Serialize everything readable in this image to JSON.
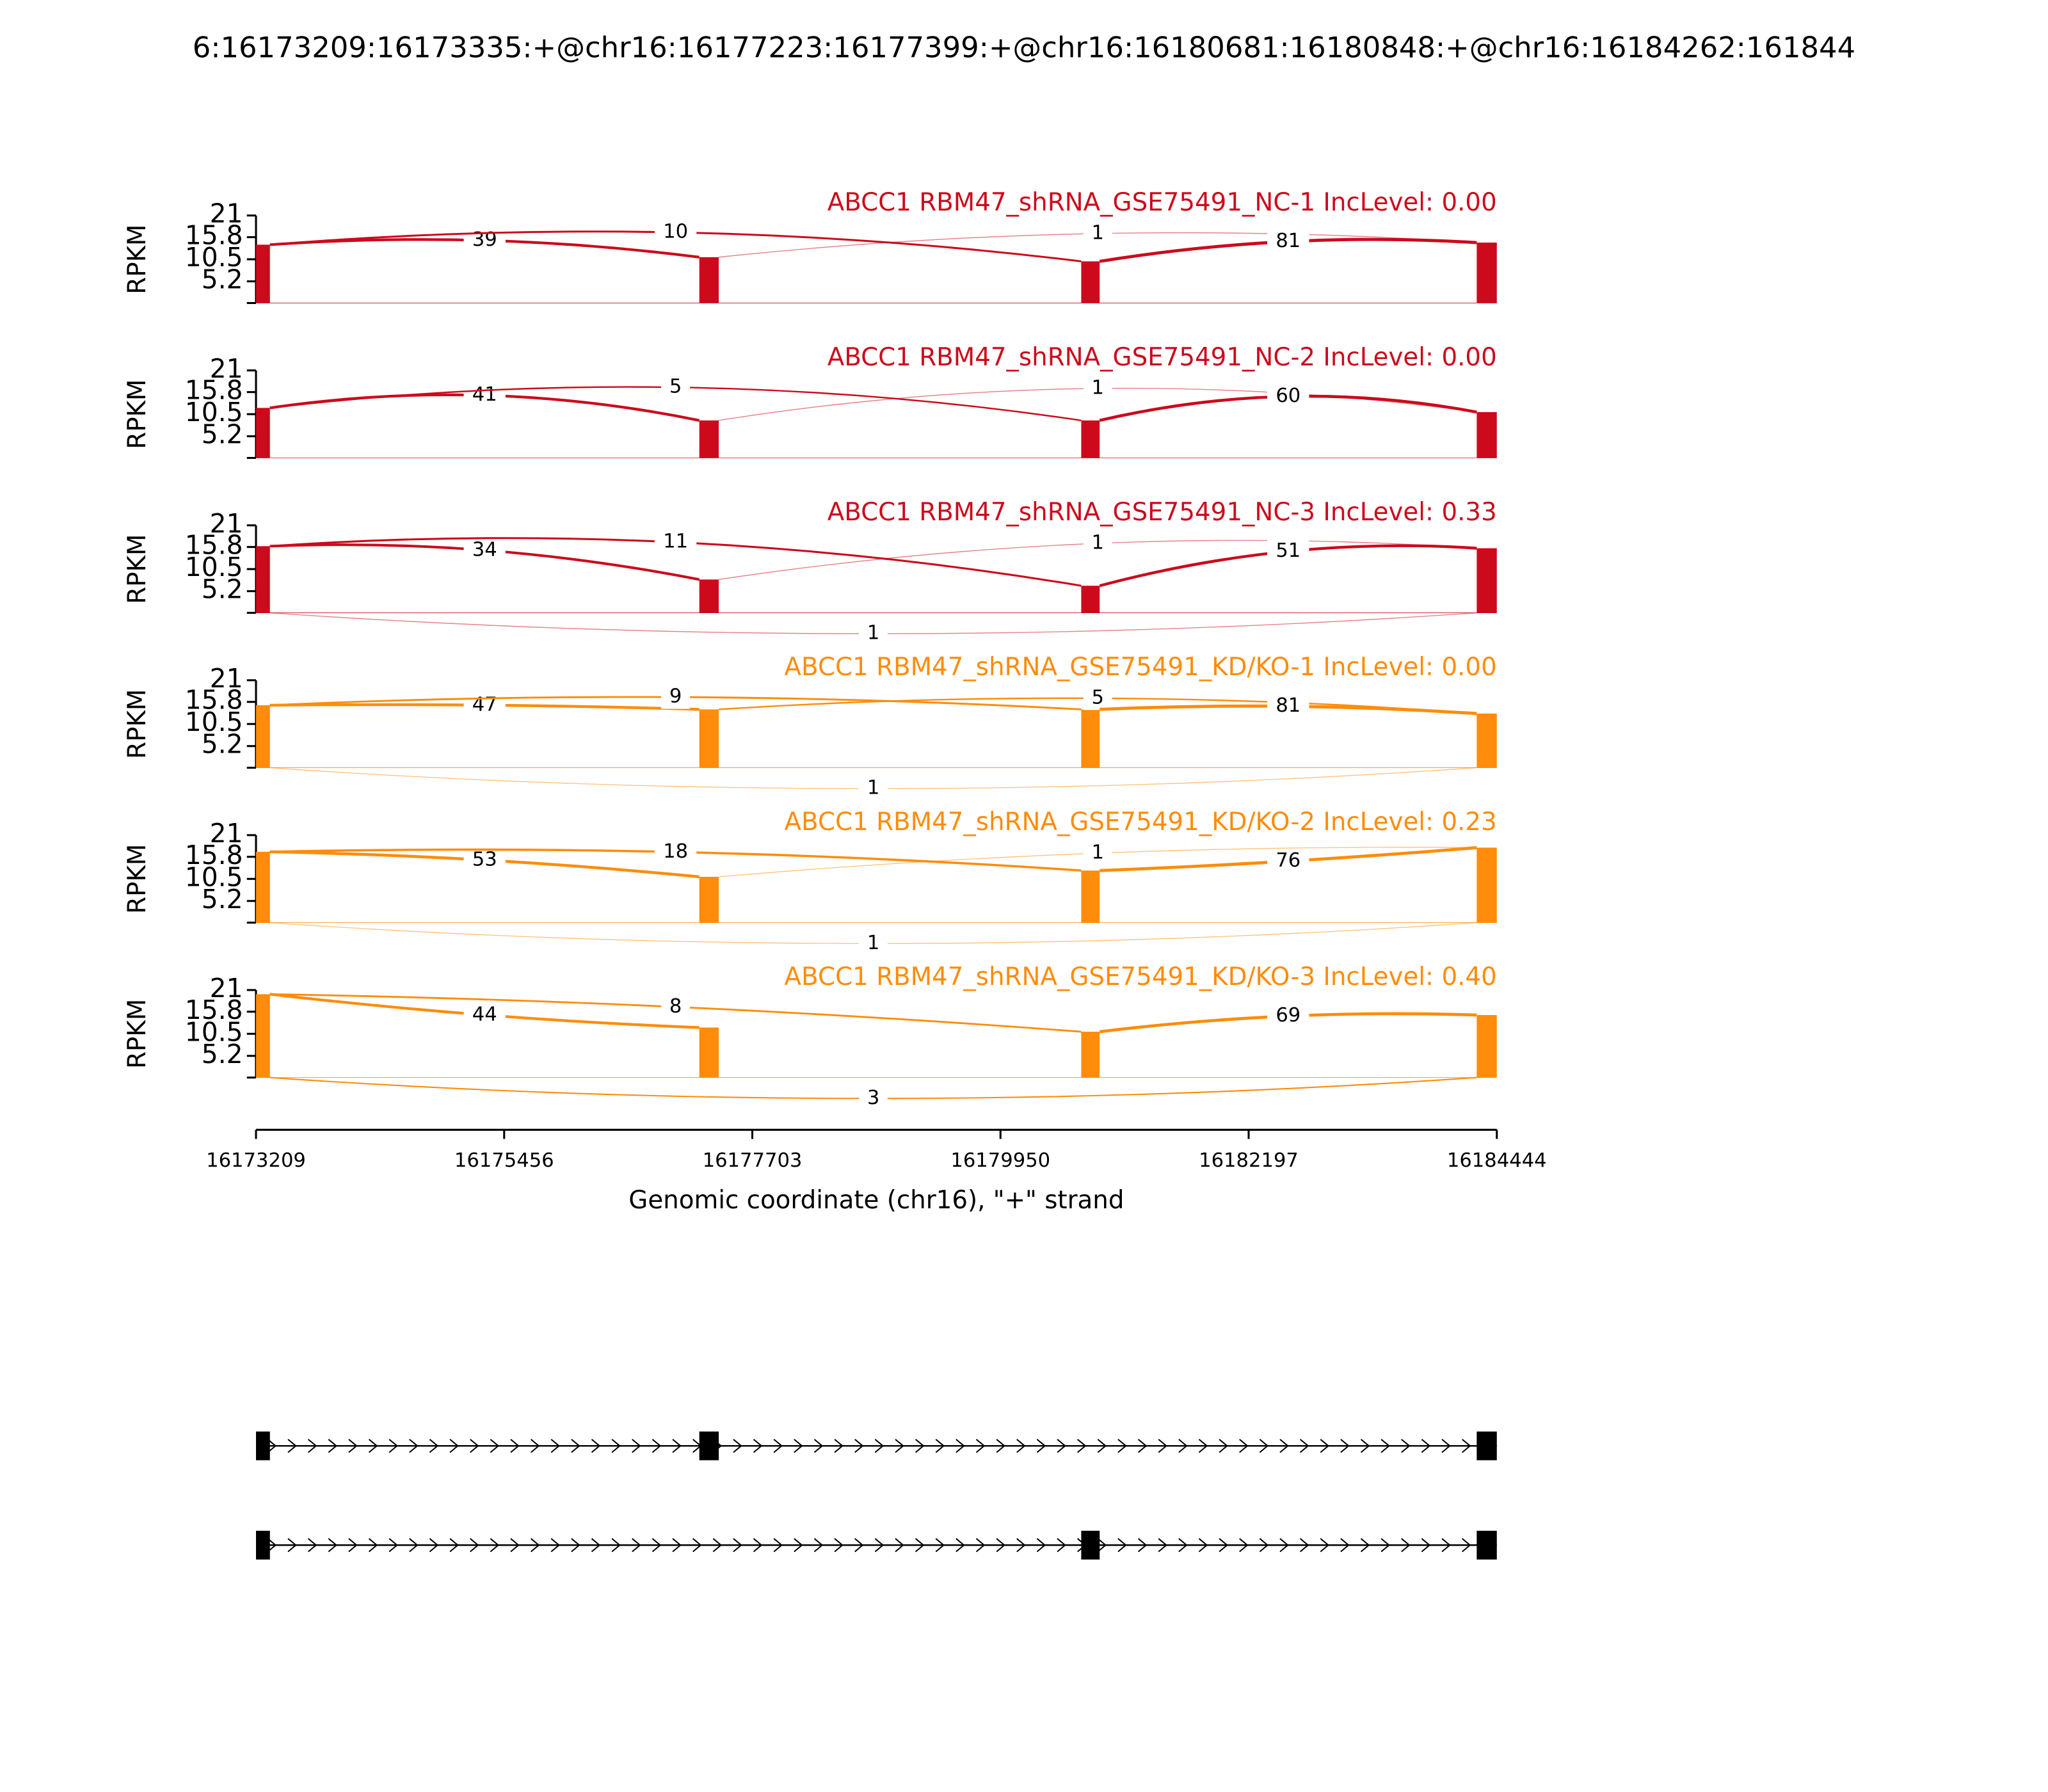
{
  "chart_data": {
    "type": "sashimi",
    "title": "6:16173209:16173335:+@chr16:16177223:16177399:+@chr16:16180681:16180848:+@chr16:16184262:161844",
    "xlabel": "Genomic coordinate (chr16), \"+\" strand",
    "ylabel": "RPKM",
    "xlim": [
      16173209,
      16184444
    ],
    "xticks": [
      16173209,
      16175456,
      16177703,
      16179950,
      16182197,
      16184444
    ],
    "ylim": [
      0,
      21
    ],
    "yticks": [
      5.2,
      10.5,
      15.8,
      21
    ],
    "exons": [
      [
        16173209,
        16173335
      ],
      [
        16177223,
        16177399
      ],
      [
        16180681,
        16180848
      ],
      [
        16184262,
        16184444
      ]
    ],
    "transcripts": [
      [
        [
          16173209,
          16173335
        ],
        [
          16177223,
          16177399
        ],
        [
          16184262,
          16184444
        ]
      ],
      [
        [
          16173209,
          16173335
        ],
        [
          16180681,
          16180848
        ],
        [
          16184262,
          16184444
        ]
      ]
    ],
    "panels": [
      {
        "title": "ABCC1 RBM47_shRNA_GSE75491_NC-1 IncLevel: 0.00",
        "color": "#cc0a1c",
        "coverage": [
          14,
          11,
          10,
          14.5
        ],
        "junctions": [
          {
            "start": 16173335,
            "end": 16177223,
            "count": 39
          },
          {
            "start": 16173335,
            "end": 16180681,
            "count": 10
          },
          {
            "start": 16177399,
            "end": 16184262,
            "count": 1
          },
          {
            "start": 16180848,
            "end": 16184262,
            "count": 81
          }
        ]
      },
      {
        "title": "ABCC1 RBM47_shRNA_GSE75491_NC-2 IncLevel: 0.00",
        "color": "#cc0a1c",
        "coverage": [
          12,
          9,
          9,
          11
        ],
        "junctions": [
          {
            "start": 16173335,
            "end": 16177223,
            "count": 41
          },
          {
            "start": 16173335,
            "end": 16180681,
            "count": 5
          },
          {
            "start": 16177399,
            "end": 16184262,
            "count": 1
          },
          {
            "start": 16180848,
            "end": 16184262,
            "count": 60
          }
        ]
      },
      {
        "title": "ABCC1 RBM47_shRNA_GSE75491_NC-3 IncLevel: 0.33",
        "color": "#cc0a1c",
        "coverage": [
          16,
          8,
          6.5,
          15.5
        ],
        "junctions": [
          {
            "start": 16173335,
            "end": 16177223,
            "count": 34
          },
          {
            "start": 16173335,
            "end": 16180681,
            "count": 11
          },
          {
            "start": 16177399,
            "end": 16184262,
            "count": 1
          },
          {
            "start": 16180848,
            "end": 16184262,
            "count": 51
          },
          {
            "start": 16173335,
            "end": 16184262,
            "count": 1
          }
        ]
      },
      {
        "title": "ABCC1 RBM47_shRNA_GSE75491_KD/KO-1 IncLevel: 0.00",
        "color": "#ff8c0a",
        "coverage": [
          15,
          14,
          14,
          13
        ],
        "junctions": [
          {
            "start": 16173335,
            "end": 16177223,
            "count": 47
          },
          {
            "start": 16173335,
            "end": 16180681,
            "count": 9
          },
          {
            "start": 16177399,
            "end": 16184262,
            "count": 5
          },
          {
            "start": 16180848,
            "end": 16184262,
            "count": 81
          },
          {
            "start": 16173335,
            "end": 16184262,
            "count": 1
          }
        ]
      },
      {
        "title": "ABCC1 RBM47_shRNA_GSE75491_KD/KO-2 IncLevel: 0.23",
        "color": "#ff8c0a",
        "coverage": [
          17,
          11,
          12.5,
          18
        ],
        "junctions": [
          {
            "start": 16173335,
            "end": 16177223,
            "count": 53
          },
          {
            "start": 16173335,
            "end": 16180681,
            "count": 18
          },
          {
            "start": 16177399,
            "end": 16184262,
            "count": 1
          },
          {
            "start": 16180848,
            "end": 16184262,
            "count": 76
          },
          {
            "start": 16173335,
            "end": 16184262,
            "count": 1
          }
        ]
      },
      {
        "title": "ABCC1 RBM47_shRNA_GSE75491_KD/KO-3 IncLevel: 0.40",
        "color": "#ff8c0a",
        "coverage": [
          20,
          12,
          11,
          15
        ],
        "junctions": [
          {
            "start": 16173335,
            "end": 16177223,
            "count": 44
          },
          {
            "start": 16173335,
            "end": 16180681,
            "count": 8
          },
          {
            "start": 16180848,
            "end": 16184262,
            "count": 69
          },
          {
            "start": 16173335,
            "end": 16184262,
            "count": 3
          }
        ]
      }
    ]
  }
}
